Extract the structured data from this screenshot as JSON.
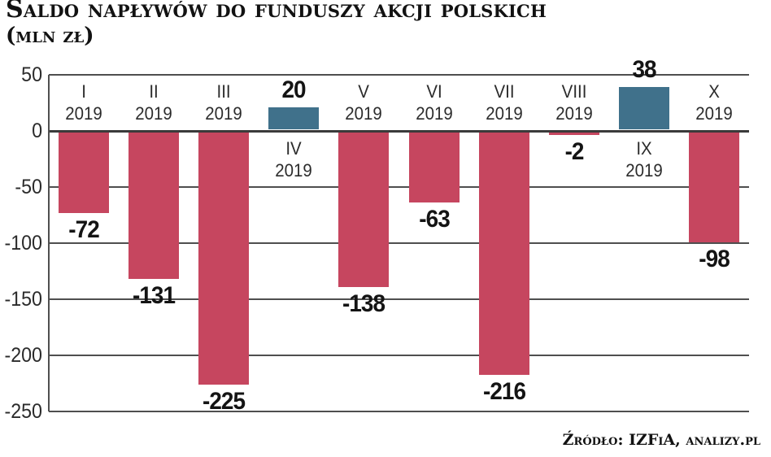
{
  "title": "Saldo napływów do funduszy akcji polskich",
  "subtitle": "(mln zł)",
  "source": "Źródło: IZFiA, analizy.pl",
  "colors": {
    "negative_bar": "#c6465f",
    "positive_bar": "#40718b",
    "gridline": "#4f4f4f",
    "zero_line": "#3a3a3a",
    "text": "#141414"
  },
  "chart_data": {
    "type": "bar",
    "title": "Saldo napływów do funduszy akcji polskich (mln zł)",
    "xlabel": "",
    "ylabel": "mln zł",
    "categories": [
      "I 2019",
      "II 2019",
      "III 2019",
      "IV 2019",
      "V 2019",
      "VI 2019",
      "VII 2019",
      "VIII 2019",
      "IX 2019",
      "X 2019"
    ],
    "values": [
      -72,
      -131,
      -225,
      20,
      -138,
      -63,
      -216,
      -2,
      38,
      -98
    ],
    "ylim": [
      -250,
      50
    ],
    "yticks": [
      50,
      0,
      -50,
      -100,
      -150,
      -200,
      -250
    ],
    "grid": true,
    "legend": false,
    "bar_color_negative": "#c6465f",
    "bar_color_positive": "#40718b",
    "value_labels_shown": true,
    "source": "Źródło: IZFiA, analizy.pl"
  }
}
